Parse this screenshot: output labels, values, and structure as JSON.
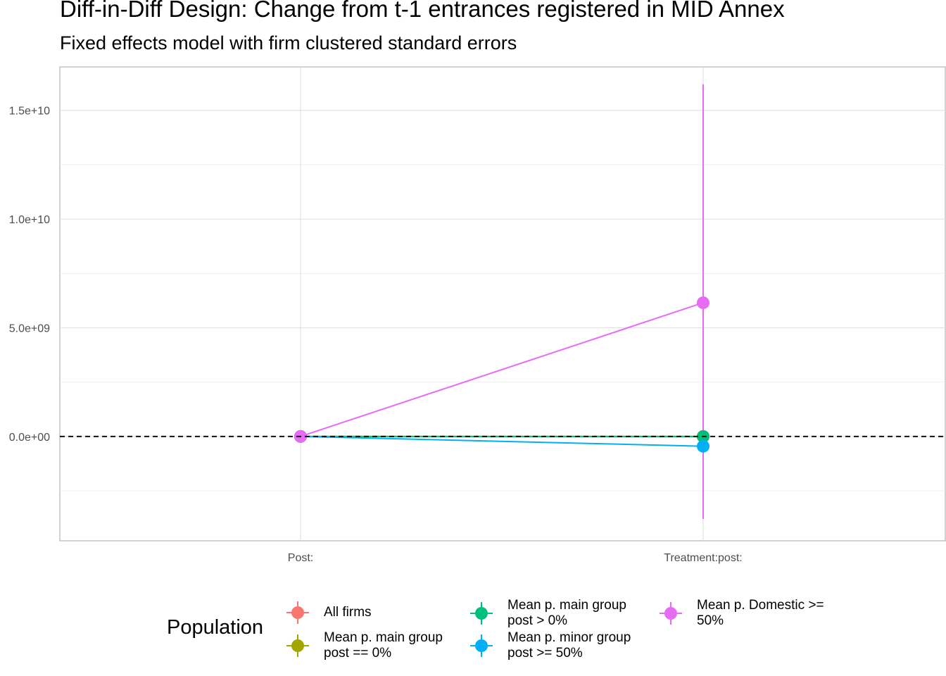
{
  "chart_data": {
    "type": "line",
    "title": "Diff-in-Diff Design: Change from t-1 entrances registered in MID Annex",
    "subtitle": "Fixed effects model with firm clustered standard errors",
    "xlabel": "",
    "ylabel": "",
    "categories": [
      "Post:",
      "Treatment:post:"
    ],
    "ylim": [
      -4800000000.0,
      17000000000.0
    ],
    "y_ticks": [
      0,
      5000000000.0,
      10000000000.0,
      15000000000.0
    ],
    "y_tick_labels": [
      "0.0e+00",
      "5.0e+09",
      "1.0e+10",
      "1.5e+10"
    ],
    "hline": 0,
    "grid": true,
    "legend_title": "Population",
    "legend_position": "bottom",
    "series": [
      {
        "name": "All firms",
        "color": "#F8766D",
        "values": [
          0,
          0
        ],
        "lower": [
          0,
          0
        ],
        "upper": [
          0,
          0
        ]
      },
      {
        "name": "Mean p. main group post == 0%",
        "color": "#A3A500",
        "values": [
          0,
          0
        ],
        "lower": [
          0,
          0
        ],
        "upper": [
          0,
          0
        ]
      },
      {
        "name": "Mean p. main group post > 0%",
        "color": "#00BF7D",
        "values": [
          0,
          0
        ],
        "lower": [
          0,
          0
        ],
        "upper": [
          0,
          0
        ]
      },
      {
        "name": "Mean p. minor group post >= 50%",
        "color": "#00B0F6",
        "values": [
          0,
          -450000000
        ],
        "lower": [
          0,
          -450000000
        ],
        "upper": [
          0,
          -450000000
        ]
      },
      {
        "name": "Mean p. Domestic >= 50%",
        "color": "#E76BF3",
        "values": [
          0,
          6150000000
        ],
        "lower": [
          0,
          -3800000000
        ],
        "upper": [
          0,
          16200000000
        ]
      }
    ]
  },
  "legend": {
    "items": [
      {
        "label_line1": "All firms",
        "label_line2": ""
      },
      {
        "label_line1": "Mean p. main group",
        "label_line2": "post == 0%"
      },
      {
        "label_line1": "Mean p. main group",
        "label_line2": "post > 0%"
      },
      {
        "label_line1": "Mean p. minor group",
        "label_line2": "post >= 50%"
      },
      {
        "label_line1": "Mean p. Domestic >=",
        "label_line2": "50%"
      }
    ]
  }
}
